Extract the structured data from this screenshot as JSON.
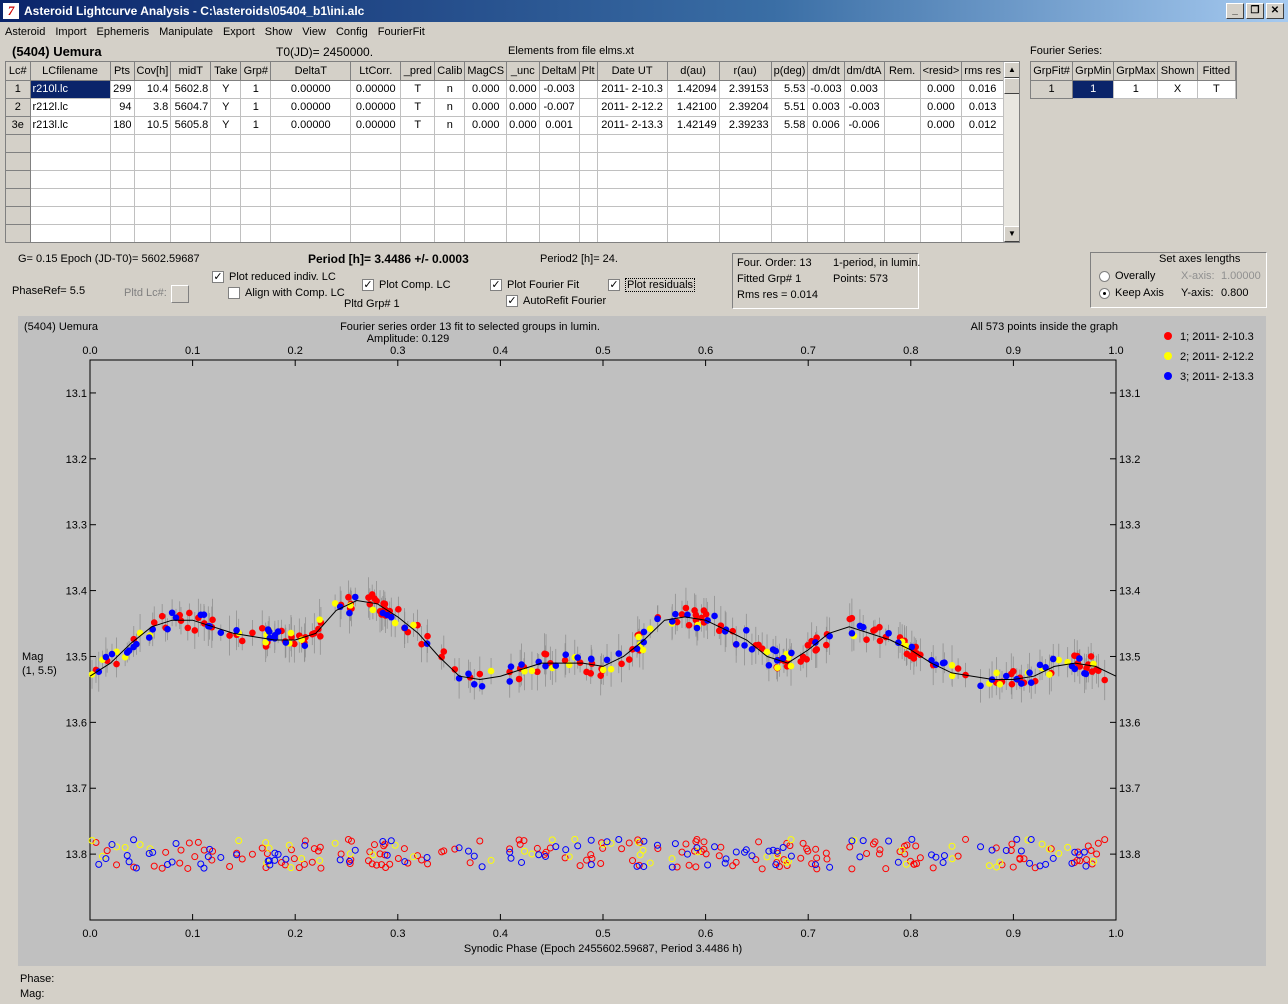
{
  "window": {
    "title": "Asteroid Lightcurve Analysis - C:\\asteroids\\05404_b1\\ini.alc",
    "app_icon_label": "7"
  },
  "menu": [
    "Asteroid",
    "Import",
    "Ephemeris",
    "Manipulate",
    "Export",
    "Show",
    "View",
    "Config",
    "FourierFit"
  ],
  "header": {
    "asteroid_name": "(5404) Uemura",
    "t0": "T0(JD)= 2450000.",
    "elements": "Elements from file elms.xt",
    "fourier_series_label": "Fourier Series:"
  },
  "lc_table": {
    "columns": [
      "Lc#",
      "LCfilename",
      "Pts",
      "Cov[h]",
      "midT",
      "Take",
      "Grp#",
      "DeltaT",
      "LtCorr.",
      "_pred",
      "Calib",
      "MagCS",
      "_unc",
      "DeltaM",
      "Plt",
      "Date UT",
      "d(au)",
      "r(au)",
      "p(deg)",
      "dm/dt",
      "dm/dtA",
      "Rem.",
      "<resid>",
      "rms res"
    ],
    "rows": [
      [
        "1",
        "r210l.lc",
        "299",
        "10.4",
        "5602.8",
        "Y",
        "1",
        "0.00000",
        "0.00000",
        "T",
        "n",
        "0.000",
        "0.000",
        "-0.003",
        "",
        "2011- 2-10.3",
        "1.42094",
        "2.39153",
        "5.53",
        "-0.003",
        "0.003",
        "",
        "0.000",
        "0.016"
      ],
      [
        "2",
        "r212l.lc",
        "94",
        "3.8",
        "5604.7",
        "Y",
        "1",
        "0.00000",
        "0.00000",
        "T",
        "n",
        "0.000",
        "0.000",
        "-0.007",
        "",
        "2011- 2-12.2",
        "1.42100",
        "2.39204",
        "5.51",
        "0.003",
        "-0.003",
        "",
        "0.000",
        "0.013"
      ],
      [
        "3e",
        "r213l.lc",
        "180",
        "10.5",
        "5605.8",
        "Y",
        "1",
        "0.00000",
        "0.00000",
        "T",
        "n",
        "0.000",
        "0.000",
        "0.001",
        "",
        "2011- 2-13.3",
        "1.42149",
        "2.39233",
        "5.58",
        "0.006",
        "-0.006",
        "",
        "0.000",
        "0.012"
      ]
    ]
  },
  "fourier_table": {
    "columns": [
      "GrpFit#",
      "GrpMin",
      "GrpMax",
      "Shown",
      "Fitted"
    ],
    "row": [
      "1",
      "1",
      "1",
      "X",
      "T"
    ]
  },
  "controls": {
    "g_epoch": "G= 0.15   Epoch (JD-T0)= 5602.59687",
    "period": "Period [h]= 3.4486 +/- 0.0003",
    "period2": "Period2 [h]= 24.",
    "phaseref": "PhaseRef= 5.5",
    "pltd_lc": "Pltd Lc#:",
    "pltd_grp": "Pltd Grp#  1",
    "chk_reduced": "Plot reduced indiv. LC",
    "chk_align": "Align with Comp. LC",
    "chk_comp": "Plot Comp. LC",
    "chk_fourier": "Plot Fourier Fit",
    "chk_autorefit": "AutoRefit Fourier",
    "chk_residuals": "Plot residuals",
    "info_order": "Four. Order: 13",
    "info_period": "1-period, in lumin.",
    "info_grp": "Fitted Grp# 1",
    "info_points": "Points: 573",
    "info_rms": "Rms res     = 0.014",
    "axes_title": "Set axes lengths",
    "radio_overall": "Overally",
    "radio_keep": "Keep Axis",
    "xaxis_label": "X-axis:",
    "xaxis_value": "1.00000",
    "yaxis_label": "Y-axis:",
    "yaxis_value": "0.800"
  },
  "plot": {
    "name": "(5404) Uemura",
    "subtitle": "Fourier series order 13 fit to selected groups in lumin.",
    "amplitude": "Amplitude: 0.129",
    "inside": "All 573 points inside the graph",
    "ylabel_line1": "Mag",
    "ylabel_line2": "(1, 5.5)",
    "xlabel": "Synodic Phase (Epoch 2455602.59687, Period 3.4486 h)",
    "x_ticks": [
      "0.0",
      "0.1",
      "0.2",
      "0.3",
      "0.4",
      "0.5",
      "0.6",
      "0.7",
      "0.8",
      "0.9",
      "1.0"
    ],
    "y_ticks": [
      "13.1",
      "13.2",
      "13.3",
      "13.4",
      "13.5",
      "13.6",
      "13.7",
      "13.8"
    ],
    "legend": [
      "1; 2011- 2-10.3",
      "2; 2011- 2-12.2",
      "3; 2011- 2-13.3"
    ]
  },
  "status": {
    "phase_label": "Phase:",
    "mag_label": "Mag:"
  },
  "chart_data": {
    "type": "scatter",
    "title": "Fourier series order 13 fit to selected groups in lumin.",
    "xlabel": "Synodic Phase (Epoch 2455602.59687, Period 3.4486 h)",
    "ylabel": "Mag (1, 5.5)",
    "xlim": [
      0.0,
      1.0
    ],
    "ylim": [
      13.05,
      13.9
    ],
    "y_inverted": true,
    "colors": {
      "1; 2011- 2-10.3": "#ff0000",
      "2; 2011- 2-12.2": "#ffff00",
      "3; 2011- 2-13.3": "#0000ff"
    },
    "fourier_fit": {
      "x": [
        0.0,
        0.02,
        0.04,
        0.06,
        0.08,
        0.1,
        0.12,
        0.14,
        0.16,
        0.18,
        0.2,
        0.22,
        0.24,
        0.26,
        0.28,
        0.3,
        0.32,
        0.34,
        0.36,
        0.38,
        0.4,
        0.42,
        0.44,
        0.46,
        0.48,
        0.5,
        0.52,
        0.54,
        0.56,
        0.58,
        0.6,
        0.62,
        0.64,
        0.66,
        0.68,
        0.7,
        0.72,
        0.74,
        0.76,
        0.78,
        0.8,
        0.82,
        0.84,
        0.86,
        0.88,
        0.9,
        0.92,
        0.94,
        0.96,
        0.98,
        1.0
      ],
      "y": [
        13.53,
        13.51,
        13.48,
        13.455,
        13.445,
        13.445,
        13.455,
        13.465,
        13.47,
        13.475,
        13.475,
        13.465,
        13.43,
        13.415,
        13.42,
        13.44,
        13.465,
        13.5,
        13.53,
        13.535,
        13.53,
        13.52,
        13.51,
        13.51,
        13.51,
        13.515,
        13.5,
        13.475,
        13.445,
        13.44,
        13.445,
        13.46,
        13.475,
        13.5,
        13.51,
        13.49,
        13.465,
        13.455,
        13.465,
        13.475,
        13.49,
        13.51,
        13.525,
        13.53,
        13.535,
        13.535,
        13.53,
        13.515,
        13.51,
        13.515,
        13.53
      ]
    },
    "series": [
      {
        "name": "1; 2011- 2-10.3",
        "phase_range": [
          0.0,
          1.0
        ],
        "x": [
          0.0,
          0.05,
          0.1,
          0.15,
          0.2,
          0.25,
          0.3,
          0.35,
          0.4,
          0.45,
          0.5,
          0.55,
          0.6,
          0.65,
          0.7,
          0.75,
          0.8,
          0.85,
          0.9,
          0.95,
          1.0
        ],
        "y": [
          13.53,
          13.465,
          13.445,
          13.465,
          13.475,
          13.41,
          13.44,
          13.53,
          13.53,
          13.51,
          13.515,
          13.46,
          13.445,
          13.475,
          13.49,
          13.46,
          13.475,
          13.525,
          13.535,
          13.515,
          13.53
        ]
      },
      {
        "name": "2; 2011- 2-12.2",
        "phase_range": [
          0.0,
          1.0
        ],
        "x": [
          0.0,
          0.05,
          0.1,
          0.15,
          0.2,
          0.25,
          0.3,
          0.35,
          0.4,
          0.45,
          0.5,
          0.55,
          0.6,
          0.65,
          0.7,
          0.75,
          0.8,
          0.85,
          0.9,
          0.95,
          1.0
        ],
        "y": [
          13.53,
          13.465,
          13.445,
          13.465,
          13.475,
          13.41,
          13.44,
          13.53,
          13.53,
          13.51,
          13.515,
          13.46,
          13.445,
          13.475,
          13.49,
          13.46,
          13.475,
          13.525,
          13.535,
          13.515,
          13.53
        ]
      },
      {
        "name": "3; 2011- 2-13.3",
        "phase_range": [
          0.0,
          1.0
        ],
        "x": [
          0.0,
          0.05,
          0.1,
          0.15,
          0.2,
          0.25,
          0.3,
          0.35,
          0.4,
          0.45,
          0.5,
          0.55,
          0.6,
          0.65,
          0.7,
          0.75,
          0.8,
          0.85,
          0.9,
          0.95,
          1.0
        ],
        "y": [
          13.53,
          13.465,
          13.445,
          13.465,
          13.475,
          13.41,
          13.44,
          13.53,
          13.53,
          13.51,
          13.515,
          13.46,
          13.445,
          13.475,
          13.49,
          13.46,
          13.475,
          13.525,
          13.535,
          13.515,
          13.53
        ]
      }
    ],
    "residuals_offset": 13.8
  }
}
